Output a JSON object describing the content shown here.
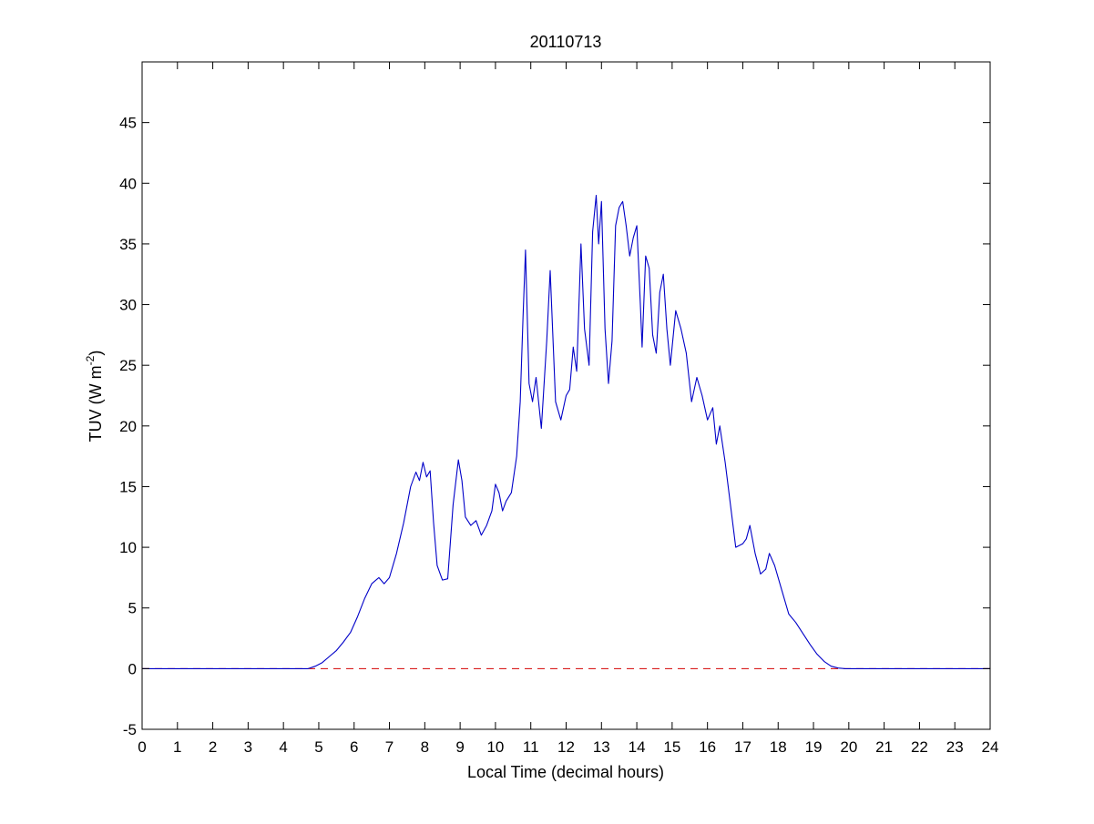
{
  "chart_data": {
    "type": "line",
    "title": "20110713",
    "xlabel": "Local Time (decimal hours)",
    "ylabel_main": "TUV (W m",
    "ylabel_sup": "-2",
    "ylabel_close": ")",
    "xlim": [
      0,
      24
    ],
    "ylim": [
      -5,
      50
    ],
    "xticks": [
      0,
      1,
      2,
      3,
      4,
      5,
      6,
      7,
      8,
      9,
      10,
      11,
      12,
      13,
      14,
      15,
      16,
      17,
      18,
      19,
      20,
      21,
      22,
      23,
      24
    ],
    "yticks": [
      -5,
      0,
      5,
      10,
      15,
      20,
      25,
      30,
      35,
      40,
      45
    ],
    "grid": false,
    "line_color": "#0000c8",
    "reference_color": "#d40000",
    "reference_line": {
      "y": 0,
      "style": "dashed"
    },
    "series": [
      {
        "x": [
          0,
          4.7,
          4.9,
          5.1,
          5.3,
          5.5,
          5.7,
          5.9,
          6.1,
          6.3,
          6.5,
          6.7,
          6.85,
          7.0,
          7.2,
          7.4,
          7.6,
          7.75,
          7.85,
          7.95,
          8.05,
          8.15,
          8.25,
          8.35,
          8.5,
          8.65,
          8.8,
          8.95,
          9.05,
          9.15,
          9.3,
          9.45,
          9.6,
          9.75,
          9.9,
          10.0,
          10.1,
          10.2,
          10.3,
          10.45,
          10.6,
          10.7,
          10.78,
          10.85,
          10.95,
          11.05,
          11.15,
          11.3,
          11.45,
          11.55,
          11.7,
          11.85,
          12.0,
          12.1,
          12.2,
          12.3,
          12.42,
          12.52,
          12.65,
          12.75,
          12.85,
          12.92,
          13.0,
          13.1,
          13.2,
          13.3,
          13.4,
          13.5,
          13.6,
          13.7,
          13.8,
          13.9,
          14.0,
          14.1,
          14.15,
          14.25,
          14.35,
          14.45,
          14.55,
          14.65,
          14.75,
          14.85,
          14.95,
          15.1,
          15.25,
          15.4,
          15.55,
          15.7,
          15.85,
          16.0,
          16.15,
          16.25,
          16.35,
          16.5,
          16.65,
          16.8,
          17.0,
          17.1,
          17.2,
          17.35,
          17.5,
          17.65,
          17.75,
          17.9,
          18.1,
          18.3,
          18.5,
          18.7,
          18.9,
          19.1,
          19.3,
          19.5,
          19.7,
          19.9,
          20.1,
          24
        ],
        "y": [
          0,
          0,
          0.2,
          0.5,
          1.0,
          1.5,
          2.2,
          3.0,
          4.3,
          5.8,
          7.0,
          7.5,
          7.0,
          7.5,
          9.5,
          12.0,
          15.0,
          16.2,
          15.5,
          17.0,
          15.8,
          16.3,
          12.0,
          8.5,
          7.3,
          7.4,
          13.5,
          17.2,
          15.5,
          12.5,
          11.8,
          12.2,
          11.0,
          11.8,
          13.0,
          15.2,
          14.5,
          13.0,
          13.8,
          14.5,
          17.5,
          22.0,
          29.0,
          34.5,
          23.5,
          22.0,
          24.0,
          19.8,
          27.0,
          32.8,
          22.0,
          20.5,
          22.5,
          23.0,
          26.5,
          24.5,
          35.0,
          28.0,
          25.0,
          36.0,
          39.0,
          35.0,
          38.5,
          28.0,
          23.5,
          27.0,
          36.5,
          38.0,
          38.5,
          36.5,
          34.0,
          35.5,
          36.5,
          30.0,
          26.5,
          34.0,
          33.0,
          27.5,
          26.0,
          31.0,
          32.5,
          28.0,
          25.0,
          29.5,
          28.0,
          26.0,
          22.0,
          24.0,
          22.5,
          20.5,
          21.5,
          18.5,
          20.0,
          17.0,
          13.5,
          10.0,
          10.3,
          10.7,
          11.8,
          9.5,
          7.8,
          8.2,
          9.5,
          8.5,
          6.5,
          4.5,
          3.8,
          2.9,
          2.0,
          1.2,
          0.6,
          0.2,
          0.05,
          0,
          0,
          0
        ]
      }
    ]
  }
}
